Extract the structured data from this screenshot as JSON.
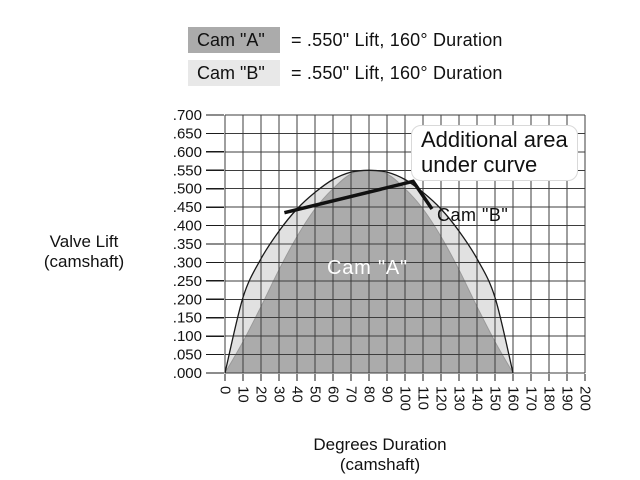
{
  "legend": {
    "items": [
      {
        "label": "Cam \"A\"",
        "value": "=  .550\" Lift, 160° Duration",
        "swatch_color": "#ababab"
      },
      {
        "label": "Cam \"B\"",
        "value": "=  .550\" Lift, 160° Duration",
        "swatch_color": "#e8e8e8"
      }
    ]
  },
  "axes": {
    "y_title_line1": "Valve Lift",
    "y_title_line2": "(camshaft)",
    "x_title_line1": "Degrees Duration",
    "x_title_line2": "(camshaft)"
  },
  "labels": {
    "cam_a": "Cam \"A\"",
    "cam_b": "Cam \"B\""
  },
  "annotation": {
    "line1": "Additional area",
    "line2": "under curve",
    "pointer_points": [
      [
        33,
        0.435
      ],
      [
        104.5,
        0.52
      ],
      [
        115,
        0.445
      ]
    ]
  },
  "colors": {
    "cam_a_fill": "#ababab",
    "cam_a_edge": "#9a9a9a",
    "cam_b_fill": "#e1e1e1",
    "cam_b_edge": "#1a1a1a",
    "grid": "#3d3d3d",
    "tick": "#1a1a1a",
    "axis_text": "#111111",
    "pointer": "#111111"
  },
  "chart_data": {
    "type": "area",
    "x": [
      0,
      10,
      20,
      30,
      40,
      50,
      60,
      70,
      80,
      90,
      100,
      110,
      120,
      130,
      140,
      150,
      160
    ],
    "series": [
      {
        "name": "Cam \"A\"",
        "lift": "0.550",
        "duration_deg": 160,
        "values": [
          0.0,
          0.085,
          0.18,
          0.28,
          0.37,
          0.445,
          0.5,
          0.54,
          0.55,
          0.54,
          0.5,
          0.445,
          0.37,
          0.28,
          0.18,
          0.085,
          0.0
        ]
      },
      {
        "name": "Cam \"B\"",
        "lift": "0.550",
        "duration_deg": 160,
        "values": [
          0.0,
          0.205,
          0.31,
          0.385,
          0.445,
          0.49,
          0.525,
          0.545,
          0.55,
          0.545,
          0.525,
          0.49,
          0.445,
          0.385,
          0.31,
          0.205,
          0.0
        ]
      }
    ],
    "xlabel": "Degrees Duration (camshaft)",
    "ylabel": "Valve Lift (camshaft)",
    "xlim": [
      0,
      200
    ],
    "ylim": [
      0,
      0.7
    ],
    "x_tick_step": 10,
    "y_tick_step": 0.05,
    "x_ticks": [
      "0",
      "10",
      "20",
      "30",
      "40",
      "50",
      "60",
      "70",
      "80",
      "90",
      "100",
      "110",
      "120",
      "130",
      "140",
      "150",
      "160",
      "170",
      "180",
      "190",
      "200"
    ],
    "y_ticks": [
      ".700",
      ".650",
      ".600",
      ".550",
      ".500",
      ".450",
      ".400",
      ".350",
      ".300",
      ".250",
      ".200",
      ".150",
      ".100",
      ".050",
      ".000"
    ],
    "grid": true,
    "legend_position": "top"
  }
}
